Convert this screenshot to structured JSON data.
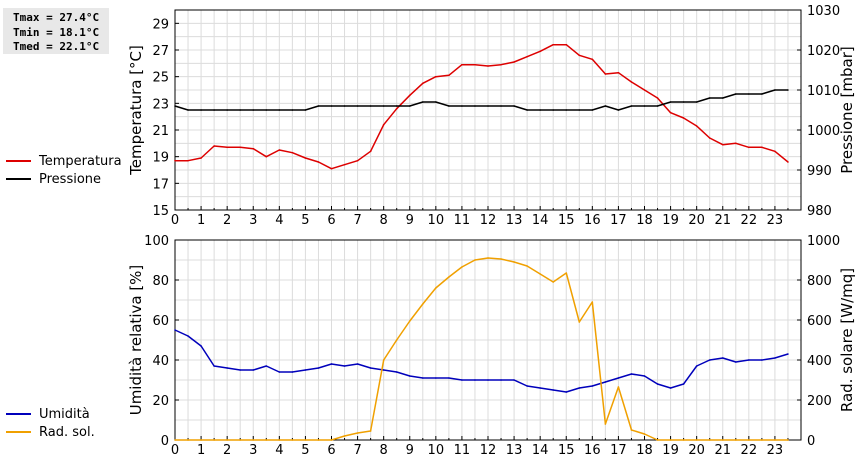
{
  "stats": {
    "tmax": "Tmax = 27.4°C",
    "tmin": "Tmin = 18.1°C",
    "tmed": "Tmed = 22.1°C"
  },
  "legend_top": [
    {
      "label": "Temperatura",
      "color": "#dd0000"
    },
    {
      "label": "Pressione",
      "color": "#000000"
    }
  ],
  "legend_bottom": [
    {
      "label": "Umidità",
      "color": "#0000bb"
    },
    {
      "label": "Rad. sol.",
      "color": "#f0a000"
    }
  ],
  "chart_data": [
    {
      "type": "line",
      "ylabel": "Temperatura [°C]",
      "ylabel_right": "Pressione [mbar]",
      "xlim": [
        0,
        24
      ],
      "ylim": [
        15,
        30
      ],
      "ylim_right": [
        980,
        1030
      ],
      "yticks": [
        15,
        17,
        19,
        21,
        23,
        25,
        27,
        29
      ],
      "yticks_right": [
        980,
        990,
        1000,
        1010,
        1020,
        1030
      ],
      "xticks": [
        0,
        1,
        2,
        3,
        4,
        5,
        6,
        7,
        8,
        9,
        10,
        11,
        12,
        13,
        14,
        15,
        16,
        17,
        18,
        19,
        20,
        21,
        22,
        23
      ],
      "grid": true,
      "series": [
        {
          "name": "Temperatura",
          "axis": "left",
          "color": "#dd0000",
          "x": [
            0,
            0.5,
            1,
            1.5,
            2,
            2.5,
            3,
            3.5,
            4,
            4.5,
            5,
            5.5,
            6,
            6.5,
            7,
            7.5,
            8,
            8.5,
            9,
            9.5,
            10,
            10.5,
            11,
            11.5,
            12,
            12.5,
            13,
            13.5,
            14,
            14.5,
            15,
            15.5,
            16,
            16.5,
            17,
            17.5,
            18,
            18.5,
            19,
            19.5,
            20,
            20.5,
            21,
            21.5,
            22,
            22.5,
            23,
            23.5
          ],
          "y": [
            18.7,
            18.7,
            18.9,
            19.8,
            19.7,
            19.7,
            19.6,
            19.0,
            19.5,
            19.3,
            18.9,
            18.6,
            18.1,
            18.4,
            18.7,
            19.4,
            21.4,
            22.6,
            23.6,
            24.5,
            25.0,
            25.1,
            25.9,
            25.9,
            25.8,
            25.9,
            26.1,
            26.5,
            26.9,
            27.4,
            27.4,
            26.6,
            26.3,
            25.2,
            25.3,
            24.6,
            24.0,
            23.4,
            22.3,
            21.9,
            21.3,
            20.4,
            19.9,
            20.0,
            19.7,
            19.7,
            19.4,
            18.6
          ]
        },
        {
          "name": "Pressione",
          "axis": "right",
          "color": "#000000",
          "x": [
            0,
            0.5,
            1,
            1.5,
            2,
            2.5,
            3,
            3.5,
            4,
            4.5,
            5,
            5.5,
            6,
            6.5,
            7,
            7.5,
            8,
            8.5,
            9,
            9.5,
            10,
            10.5,
            11,
            11.5,
            12,
            12.5,
            13,
            13.5,
            14,
            14.5,
            15,
            15.5,
            16,
            16.5,
            17,
            17.5,
            18,
            18.5,
            19,
            19.5,
            20,
            20.5,
            21,
            21.5,
            22,
            22.5,
            23,
            23.5
          ],
          "y": [
            1006,
            1005,
            1005,
            1005,
            1005,
            1005,
            1005,
            1005,
            1005,
            1005,
            1005,
            1006,
            1006,
            1006,
            1006,
            1006,
            1006,
            1006,
            1006,
            1007,
            1007,
            1006,
            1006,
            1006,
            1006,
            1006,
            1006,
            1005,
            1005,
            1005,
            1005,
            1005,
            1005,
            1006,
            1005,
            1006,
            1006,
            1006,
            1007,
            1007,
            1007,
            1008,
            1008,
            1009,
            1009,
            1009,
            1010,
            1010
          ]
        }
      ]
    },
    {
      "type": "line",
      "ylabel": "Umidità relativa [%]",
      "ylabel_right": "Rad. solare [W/mq]",
      "xlim": [
        0,
        24
      ],
      "ylim": [
        0,
        100
      ],
      "ylim_right": [
        0,
        1000
      ],
      "yticks": [
        0,
        20,
        40,
        60,
        80,
        100
      ],
      "yticks_right": [
        0,
        200,
        400,
        600,
        800,
        1000
      ],
      "xticks": [
        0,
        1,
        2,
        3,
        4,
        5,
        6,
        7,
        8,
        9,
        10,
        11,
        12,
        13,
        14,
        15,
        16,
        17,
        18,
        19,
        20,
        21,
        22,
        23
      ],
      "grid": true,
      "series": [
        {
          "name": "Umidità",
          "axis": "left",
          "color": "#0000bb",
          "x": [
            0,
            0.5,
            1,
            1.5,
            2,
            2.5,
            3,
            3.5,
            4,
            4.5,
            5,
            5.5,
            6,
            6.5,
            7,
            7.5,
            8,
            8.5,
            9,
            9.5,
            10,
            10.5,
            11,
            11.5,
            12,
            12.5,
            13,
            13.5,
            14,
            14.5,
            15,
            15.5,
            16,
            16.5,
            17,
            17.5,
            18,
            18.5,
            19,
            19.5,
            20,
            20.5,
            21,
            21.5,
            22,
            22.5,
            23,
            23.5
          ],
          "y": [
            55,
            52,
            47,
            37,
            36,
            35,
            35,
            37,
            34,
            34,
            35,
            36,
            38,
            37,
            38,
            36,
            35,
            34,
            32,
            31,
            31,
            31,
            30,
            30,
            30,
            30,
            30,
            27,
            26,
            25,
            24,
            26,
            27,
            29,
            31,
            33,
            32,
            28,
            26,
            28,
            37,
            40,
            41,
            39,
            40,
            40,
            41,
            43
          ]
        },
        {
          "name": "Rad. sol.",
          "axis": "right",
          "color": "#f0a000",
          "x": [
            0,
            0.5,
            1,
            1.5,
            2,
            2.5,
            3,
            3.5,
            4,
            4.5,
            5,
            5.5,
            6,
            6.5,
            7,
            7.5,
            8,
            8.5,
            9,
            9.5,
            10,
            10.5,
            11,
            11.5,
            12,
            12.5,
            13,
            13.5,
            14,
            14.5,
            15,
            15.5,
            16,
            16.5,
            17,
            17.5,
            18,
            18.5,
            19,
            19.5,
            20,
            20.5,
            21,
            21.5,
            22,
            22.5,
            23,
            23.5
          ],
          "y": [
            0,
            0,
            0,
            0,
            0,
            0,
            0,
            0,
            0,
            0,
            0,
            0,
            0,
            20,
            35,
            45,
            400,
            500,
            595,
            680,
            760,
            815,
            865,
            900,
            910,
            905,
            890,
            870,
            830,
            790,
            835,
            590,
            690,
            80,
            265,
            50,
            30,
            0,
            0,
            0,
            0,
            0,
            0,
            0,
            0,
            0,
            0,
            0
          ]
        }
      ]
    }
  ]
}
